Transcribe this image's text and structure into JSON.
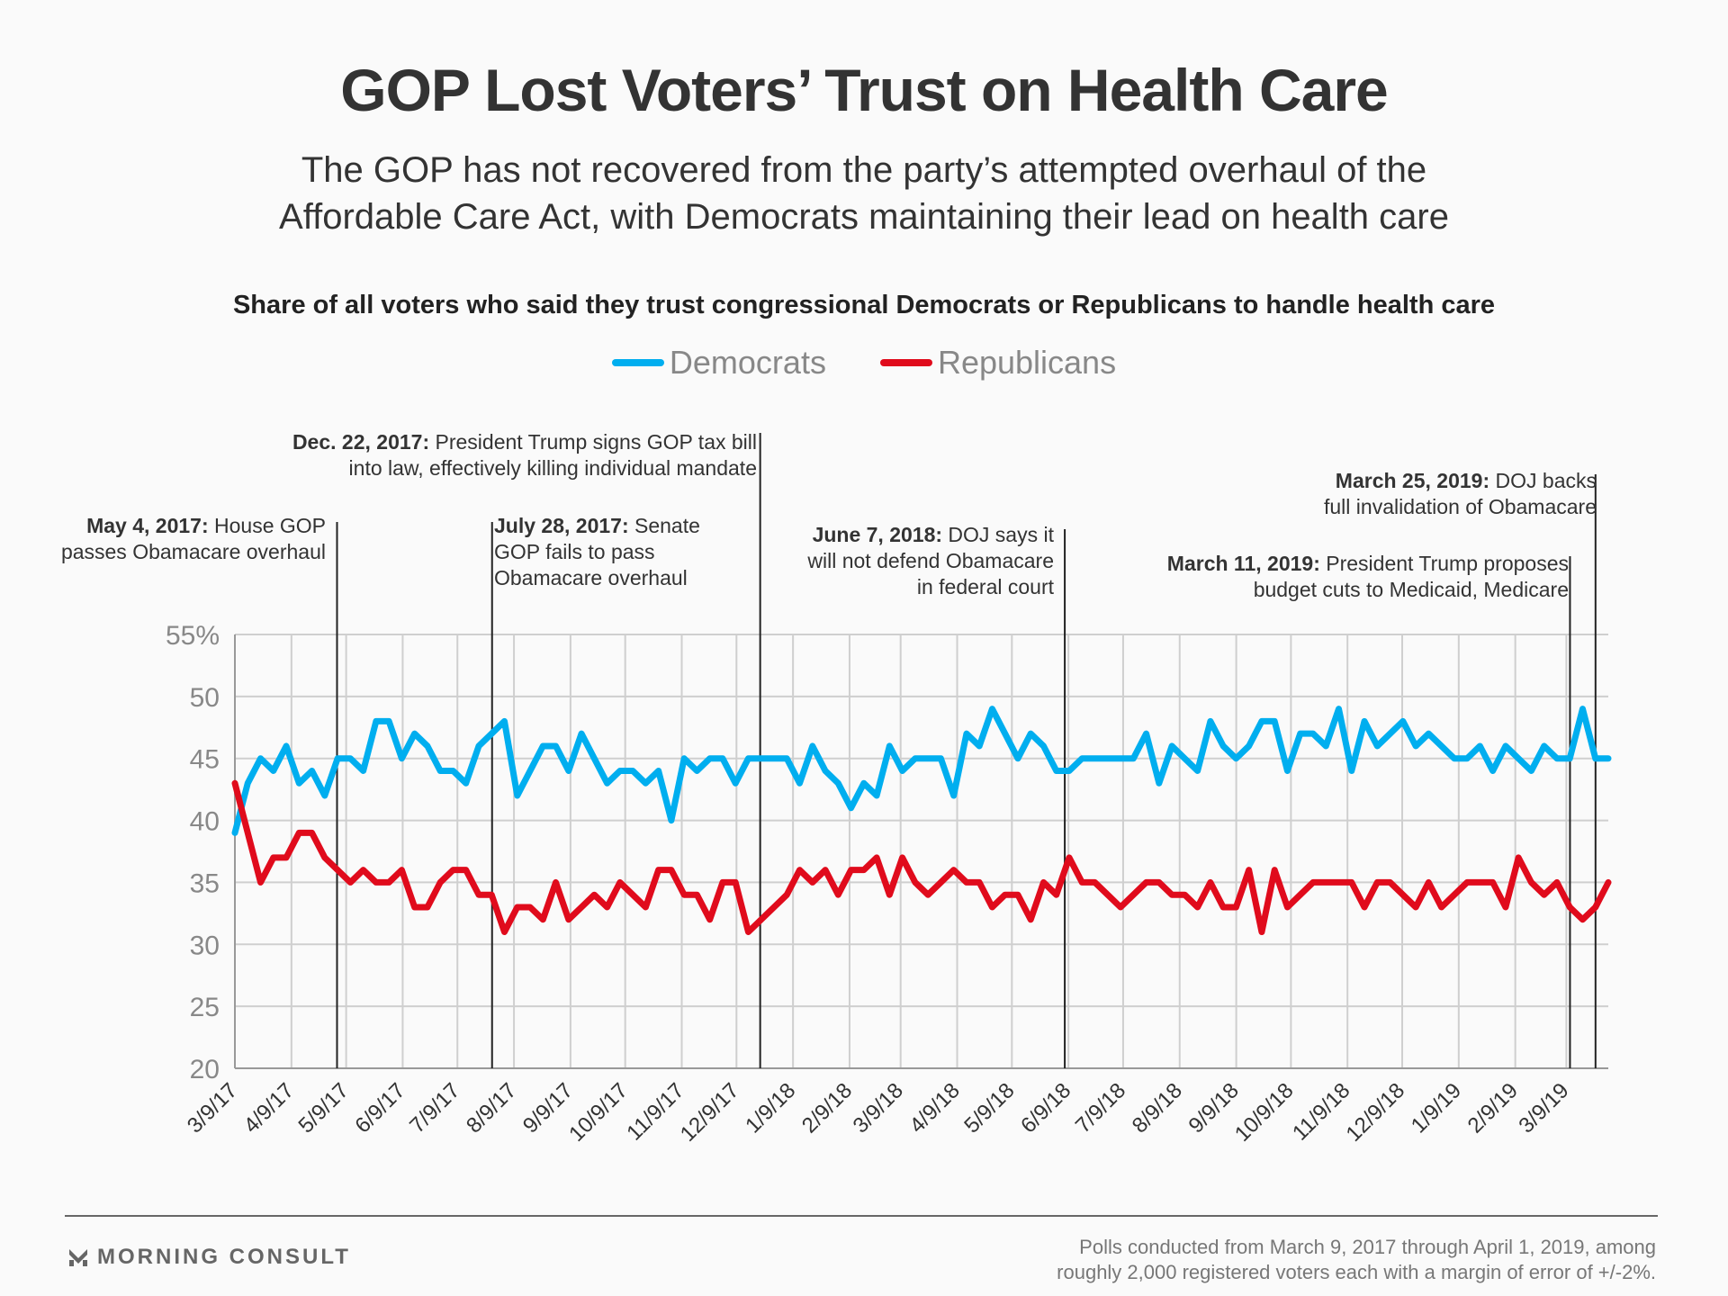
{
  "title": "GOP Lost Voters’ Trust on Health Care",
  "subtitle_lines": [
    "The GOP has not recovered from the party’s attempted overhaul of the",
    "Affordable Care Act, with Democrats maintaining their lead on health care"
  ],
  "brand": {
    "logo_icon": "morning-consult-m-icon",
    "name": "MORNING CONSULT"
  },
  "footnote_lines": [
    "Polls conducted from March 9, 2017 through April 1, 2019, among",
    "roughly 2,000 registered voters each with a margin of error of +/-2%."
  ],
  "annotations": [
    {
      "date": "May 4, 2017:",
      "text_lines": [
        "House GOP",
        "passes Obamacare overhaul"
      ],
      "event_date": "2017-05-04"
    },
    {
      "date": "July 28, 2017:",
      "text_lines": [
        "Senate",
        "GOP fails to pass",
        "Obamacare overhaul"
      ],
      "event_date": "2017-07-28"
    },
    {
      "date": "Dec. 22, 2017:",
      "text_lines": [
        "President Trump signs GOP tax bill",
        "into law, effectively killing individual mandate"
      ],
      "event_date": "2017-12-22"
    },
    {
      "date": "June 7, 2018:",
      "text_lines": [
        "DOJ says it",
        "will not defend Obamacare",
        "in federal court"
      ],
      "event_date": "2018-06-07"
    },
    {
      "date": "March 11, 2019:",
      "text_lines": [
        "President Trump proposes",
        "budget cuts to Medicaid, Medicare"
      ],
      "event_date": "2019-03-11"
    },
    {
      "date": "March 25, 2019:",
      "text_lines": [
        "DOJ backs",
        "full invalidation of Obamacare"
      ],
      "event_date": "2019-03-25"
    }
  ],
  "chart_data": {
    "type": "line",
    "title": "Share of all voters who said they trust congressional Democrats or Republicans to handle health care",
    "xlabel": "",
    "ylabel": "",
    "x_start": "2017-03-09",
    "x_end": "2019-04-01",
    "x_interval": "weekly",
    "ylim": [
      20,
      55
    ],
    "yticks": [
      20,
      25,
      30,
      35,
      40,
      45,
      50,
      55
    ],
    "ytick_labels": [
      "20",
      "25",
      "30",
      "35",
      "40",
      "45",
      "50",
      "55%"
    ],
    "xtick_labels": [
      "3/9/17",
      "4/9/17",
      "5/9/17",
      "6/9/17",
      "7/9/17",
      "8/9/17",
      "9/9/17",
      "10/9/17",
      "11/9/17",
      "12/9/17",
      "1/9/18",
      "2/9/18",
      "3/9/18",
      "4/9/18",
      "5/9/18",
      "6/9/18",
      "7/9/18",
      "8/9/18",
      "9/9/18",
      "10/9/18",
      "11/9/18",
      "12/9/18",
      "1/9/19",
      "2/9/19",
      "3/9/19"
    ],
    "xtick_dates": [
      "2017-03-09",
      "2017-04-09",
      "2017-05-09",
      "2017-06-09",
      "2017-07-09",
      "2017-08-09",
      "2017-09-09",
      "2017-10-09",
      "2017-11-09",
      "2017-12-09",
      "2018-01-09",
      "2018-02-09",
      "2018-03-09",
      "2018-04-09",
      "2018-05-09",
      "2018-06-09",
      "2018-07-09",
      "2018-08-09",
      "2018-09-09",
      "2018-10-09",
      "2018-11-09",
      "2018-12-09",
      "2019-01-09",
      "2019-02-09",
      "2019-03-09"
    ],
    "grid": true,
    "legend": "top-center",
    "series": [
      {
        "name": "Democrats",
        "color": "#00aeef",
        "values": [
          39,
          43,
          45,
          44,
          46,
          43,
          44,
          42,
          45,
          45,
          44,
          48,
          48,
          45,
          47,
          46,
          44,
          44,
          43,
          46,
          47,
          48,
          42,
          44,
          46,
          46,
          44,
          47,
          45,
          43,
          44,
          44,
          43,
          44,
          40,
          45,
          44,
          45,
          45,
          43,
          45,
          45,
          45,
          45,
          43,
          46,
          44,
          43,
          41,
          43,
          42,
          46,
          44,
          45,
          45,
          45,
          42,
          47,
          46,
          49,
          47,
          45,
          47,
          46,
          44,
          44,
          45,
          45,
          45,
          45,
          45,
          47,
          43,
          46,
          45,
          44,
          48,
          46,
          45,
          46,
          48,
          48,
          44,
          47,
          47,
          46,
          49,
          44,
          48,
          46,
          47,
          48,
          46,
          47,
          46,
          45,
          45,
          46,
          44,
          46,
          45,
          44,
          46,
          45,
          45,
          49,
          45,
          45
        ]
      },
      {
        "name": "Republicans",
        "color": "#e00b1c",
        "values": [
          43,
          39,
          35,
          37,
          37,
          39,
          39,
          37,
          36,
          35,
          36,
          35,
          35,
          36,
          33,
          33,
          35,
          36,
          36,
          34,
          34,
          31,
          33,
          33,
          32,
          35,
          32,
          33,
          34,
          33,
          35,
          34,
          33,
          36,
          36,
          34,
          34,
          32,
          35,
          35,
          31,
          32,
          33,
          34,
          36,
          35,
          36,
          34,
          36,
          36,
          37,
          34,
          37,
          35,
          34,
          35,
          36,
          35,
          35,
          33,
          34,
          34,
          32,
          35,
          34,
          37,
          35,
          35,
          34,
          33,
          34,
          35,
          35,
          34,
          34,
          33,
          35,
          33,
          33,
          36,
          31,
          36,
          33,
          34,
          35,
          35,
          35,
          35,
          33,
          35,
          35,
          34,
          33,
          35,
          33,
          34,
          35,
          35,
          35,
          33,
          37,
          35,
          34,
          35,
          33,
          32,
          33,
          35
        ]
      }
    ]
  }
}
